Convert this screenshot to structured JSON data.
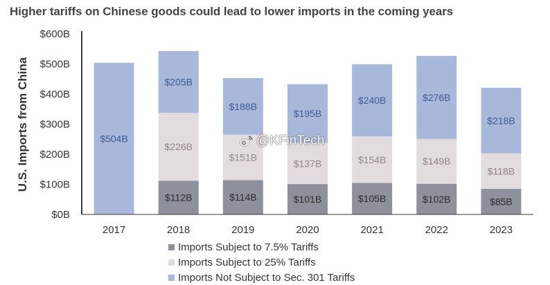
{
  "chart_data": {
    "type": "bar",
    "stacked": true,
    "title": "Higher tariffs on Chinese goods could lead to lower imports in the coming years",
    "ylabel": "U.S. Imports from China",
    "xlabel": "",
    "categories": [
      "2017",
      "2018",
      "2019",
      "2020",
      "2021",
      "2022",
      "2023"
    ],
    "ylim": [
      0,
      600
    ],
    "yticks": [
      0,
      100,
      200,
      300,
      400,
      500,
      600
    ],
    "ytick_labels": [
      "$0B",
      "$100B",
      "$200B",
      "$300B",
      "$400B",
      "$500B",
      "$600B"
    ],
    "series": [
      {
        "name": "Imports Subject to 7.5% Tariffs",
        "color": "#8e919c",
        "label_color": "#2c2c2c",
        "values": [
          0,
          112,
          114,
          101,
          105,
          102,
          85
        ],
        "labels": [
          "",
          "$112B",
          "$114B",
          "$101B",
          "$105B",
          "$102B",
          "$85B"
        ]
      },
      {
        "name": "Imports Subject to 25% Tariffs",
        "color": "#e2dcdf",
        "label_color": "#94858b",
        "values": [
          0,
          226,
          151,
          137,
          154,
          149,
          118
        ],
        "labels": [
          "",
          "$226B",
          "$151B",
          "$137B",
          "$154B",
          "$149B",
          "$118B"
        ]
      },
      {
        "name": "Imports Not Subject to Sec. 301 Tariffs",
        "color": "#a8b8db",
        "label_color": "#3d5a92",
        "values": [
          504,
          205,
          188,
          195,
          240,
          276,
          218
        ],
        "labels": [
          "$504B",
          "$205B",
          "$188B",
          "$195B",
          "$240B",
          "$276B",
          "$218B"
        ]
      }
    ],
    "legend_position": "bottom",
    "grid": false
  },
  "watermark": {
    "text": "@KFinTech",
    "icon": "weibo-icon"
  }
}
